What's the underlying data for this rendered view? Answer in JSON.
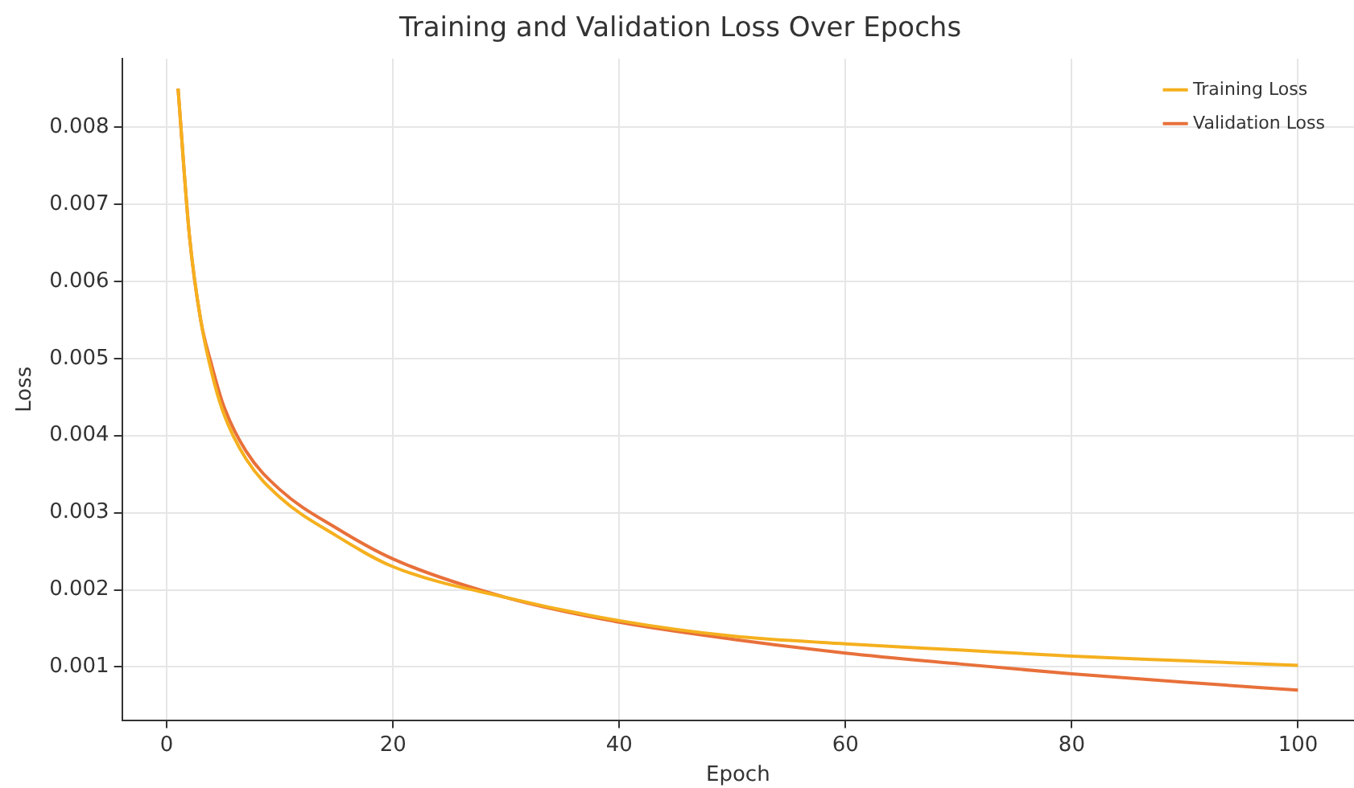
{
  "chart_data": {
    "type": "line",
    "title": "Training and Validation Loss Over Epochs",
    "xlabel": "Epoch",
    "ylabel": "Loss",
    "series": [
      {
        "name": "Training Loss",
        "color": "#f5b01e",
        "x": [
          1,
          2,
          3,
          4,
          5,
          7,
          10,
          15,
          20,
          30,
          40,
          50,
          60,
          70,
          80,
          90,
          100
        ],
        "values": [
          0.0085,
          0.0066,
          0.0055,
          0.0048,
          0.0043,
          0.0037,
          0.0032,
          0.0027,
          0.0023,
          0.0019,
          0.0016,
          0.0014,
          0.0013,
          0.00122,
          0.00114,
          0.00108,
          0.00102
        ]
      },
      {
        "name": "Validation Loss",
        "color": "#e8703a",
        "x": [
          1,
          2,
          3,
          4,
          5,
          7,
          10,
          15,
          20,
          30,
          40,
          50,
          60,
          70,
          80,
          90,
          100
        ],
        "values": [
          0.0085,
          0.0066,
          0.0055,
          0.0049,
          0.0044,
          0.0038,
          0.0033,
          0.0028,
          0.0024,
          0.0019,
          0.00158,
          0.00136,
          0.00118,
          0.00104,
          0.00091,
          0.0008,
          0.0007
        ]
      }
    ],
    "xlim": [
      -3.95,
      104.95
    ],
    "xticks": [
      0,
      20,
      40,
      60,
      80,
      100
    ],
    "ylim": [
      0.00031,
      0.00889
    ],
    "yticks": [
      0.001,
      0.002,
      0.003,
      0.004,
      0.005,
      0.006,
      0.007,
      0.008
    ],
    "grid": true,
    "legend": "top right",
    "marker": "none",
    "line_style": "solid"
  }
}
